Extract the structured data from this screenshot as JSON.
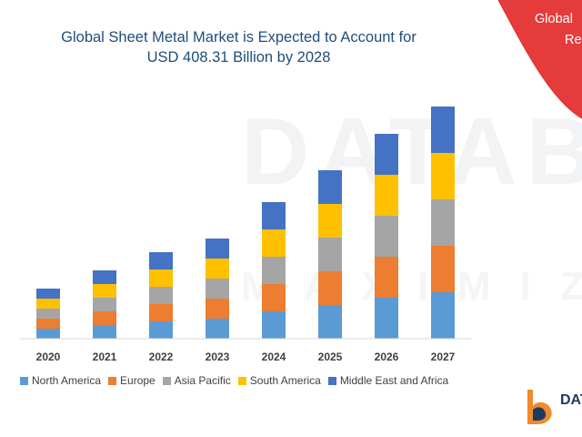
{
  "chart_data": {
    "type": "bar",
    "stacked": true,
    "title": "Global Sheet Metal Market is Expected to Account for USD 408.31 Billion by 2028",
    "title_lines": [
      "Global Sheet Metal Market is Expected to Account for",
      "USD 408.31 Billion by 2028"
    ],
    "categories": [
      "2020",
      "2021",
      "2022",
      "2023",
      "2024",
      "2025",
      "2026",
      "2027"
    ],
    "series": [
      {
        "name": "North America",
        "color": "#5b9bd5",
        "values": [
          11,
          15,
          19,
          22,
          30,
          37,
          45,
          51
        ]
      },
      {
        "name": "Europe",
        "color": "#ed7d31",
        "values": [
          11,
          15,
          19,
          22,
          30,
          37,
          45,
          51
        ]
      },
      {
        "name": "Asia Pacific",
        "color": "#a5a5a5",
        "values": [
          11,
          15,
          19,
          22,
          30,
          37,
          45,
          51
        ]
      },
      {
        "name": "South America",
        "color": "#ffc000",
        "values": [
          11,
          15,
          19,
          22,
          30,
          37,
          45,
          51
        ]
      },
      {
        "name": "Middle East and Africa",
        "color": "#4472c4",
        "values": [
          11,
          15,
          19,
          22,
          30,
          37,
          45,
          51
        ]
      }
    ],
    "xlabel": "",
    "ylabel": "",
    "ylim": [
      0,
      260
    ],
    "grid": false,
    "legend": "bottom"
  },
  "side_panel": {
    "color": "#e63b3b",
    "text_lines": [
      "Global",
      "Reg"
    ]
  },
  "watermark": {
    "text": "DATABRI",
    "subtext": "MAXIMIZE"
  },
  "brand": {
    "name": "DAT",
    "colors": [
      "#f08a2c",
      "#1f3a60"
    ]
  }
}
